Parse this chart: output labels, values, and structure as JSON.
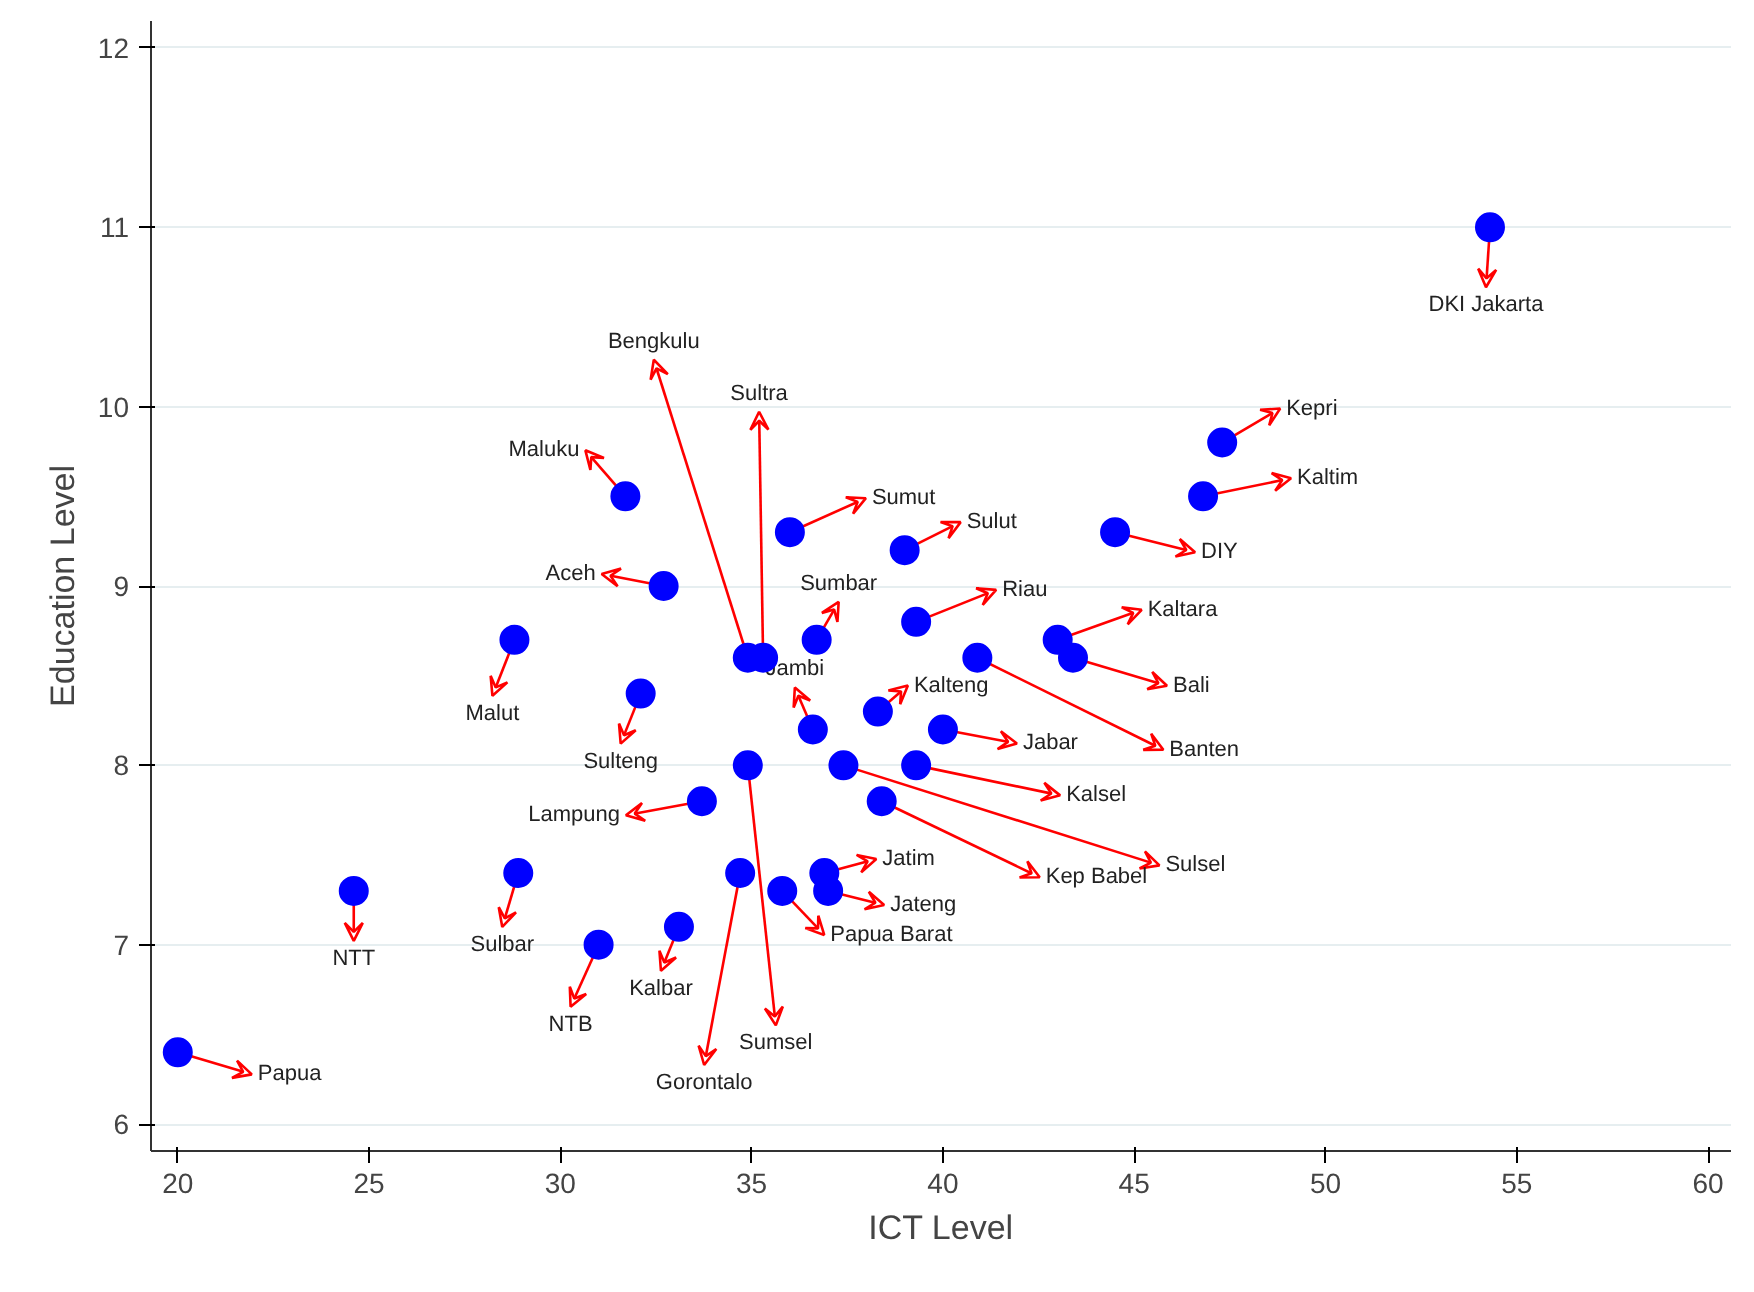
{
  "chart_data": {
    "type": "scatter",
    "xlabel": "ICT Level",
    "ylabel": "Education Level",
    "x": [
      20.0,
      24.6,
      28.8,
      28.9,
      31.0,
      33.1,
      32.1,
      31.7,
      32.7,
      33.7,
      34.7,
      34.9,
      34.9,
      35.3,
      35.8,
      36.0,
      36.6,
      36.7,
      36.9,
      37.0,
      38.4,
      37.4,
      38.3,
      39.0,
      39.3,
      39.3,
      40.0,
      40.9,
      43.0,
      43.4,
      44.5,
      46.8,
      47.3,
      54.3
    ],
    "values": [
      6.4,
      7.3,
      8.7,
      7.4,
      7.0,
      7.1,
      8.4,
      9.5,
      9.0,
      7.8,
      7.4,
      8.0,
      8.6,
      8.6,
      7.3,
      9.3,
      8.2,
      8.7,
      7.4,
      7.3,
      7.8,
      8.0,
      8.3,
      9.2,
      8.0,
      8.8,
      8.2,
      8.6,
      8.7,
      8.6,
      9.3,
      9.5,
      9.8,
      11.0
    ],
    "color": "#0000ff",
    "marker": "circle",
    "annotations": [
      {
        "text": "Papua",
        "x": 20.0,
        "y": 6.4
      },
      {
        "text": "NTT",
        "x": 24.6,
        "y": 7.3
      },
      {
        "text": "Malut",
        "x": 28.8,
        "y": 8.7
      },
      {
        "text": "Sulbar",
        "x": 28.9,
        "y": 7.4
      },
      {
        "text": "NTB",
        "x": 31.0,
        "y": 7.0
      },
      {
        "text": "Kalbar",
        "x": 33.1,
        "y": 7.1
      },
      {
        "text": "Sulteng",
        "x": 32.1,
        "y": 8.4
      },
      {
        "text": "Maluku",
        "x": 31.7,
        "y": 9.5
      },
      {
        "text": "Aceh",
        "x": 32.7,
        "y": 9.0
      },
      {
        "text": "Lampung",
        "x": 33.7,
        "y": 7.8
      },
      {
        "text": "Gorontalo",
        "x": 34.7,
        "y": 7.4
      },
      {
        "text": "Sumsel",
        "x": 34.9,
        "y": 8.0
      },
      {
        "text": "Bengkulu",
        "x": 34.9,
        "y": 8.6
      },
      {
        "text": "Sultra",
        "x": 35.3,
        "y": 8.6
      },
      {
        "text": "Papua Barat",
        "x": 35.8,
        "y": 7.3
      },
      {
        "text": "Sumut",
        "x": 36.0,
        "y": 9.3
      },
      {
        "text": "Jambi",
        "x": 36.6,
        "y": 8.2
      },
      {
        "text": "Sumbar",
        "x": 36.7,
        "y": 8.7
      },
      {
        "text": "Jatim",
        "x": 36.9,
        "y": 7.4
      },
      {
        "text": "Jateng",
        "x": 37.0,
        "y": 7.3
      },
      {
        "text": "Kep Babel",
        "x": 38.4,
        "y": 7.8
      },
      {
        "text": "Sulsel",
        "x": 37.4,
        "y": 8.0
      },
      {
        "text": "Kalteng",
        "x": 38.3,
        "y": 8.3
      },
      {
        "text": "Sulut",
        "x": 39.0,
        "y": 9.2
      },
      {
        "text": "Kalsel",
        "x": 39.3,
        "y": 8.0
      },
      {
        "text": "Riau",
        "x": 39.3,
        "y": 8.8
      },
      {
        "text": "Jabar",
        "x": 40.0,
        "y": 8.2
      },
      {
        "text": "Banten",
        "x": 40.9,
        "y": 8.6
      },
      {
        "text": "Kaltara",
        "x": 43.0,
        "y": 8.7
      },
      {
        "text": "Bali",
        "x": 43.4,
        "y": 8.6
      },
      {
        "text": "DIY",
        "x": 44.5,
        "y": 9.3
      },
      {
        "text": "Kaltim",
        "x": 46.8,
        "y": 9.5
      },
      {
        "text": "Kepri",
        "x": 47.3,
        "y": 9.8
      },
      {
        "text": "DKI Jakarta",
        "x": 54.3,
        "y": 11.0
      }
    ],
    "xlim": [
      19.3,
      60.6
    ],
    "ylim": [
      5.85,
      12.15
    ],
    "xticks": [
      20,
      25,
      30,
      35,
      40,
      45,
      50,
      55,
      60
    ],
    "yticks": [
      6,
      7,
      8,
      9,
      10,
      11,
      12
    ],
    "grid": "y"
  }
}
